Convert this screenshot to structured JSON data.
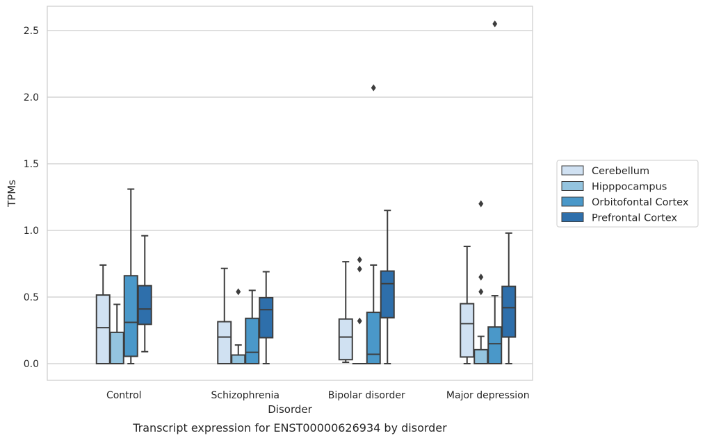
{
  "chart_data": {
    "type": "box",
    "title": "",
    "caption": "Transcript expression for ENST00000626934 by disorder",
    "xlabel": "Disorder",
    "ylabel": "TPMs",
    "ylim": [
      -0.125,
      2.68
    ],
    "yticks": [
      0.0,
      0.5,
      1.0,
      1.5,
      2.0,
      2.5
    ],
    "ytick_labels": [
      "0.0",
      "0.5",
      "1.0",
      "1.5",
      "2.0",
      "2.5"
    ],
    "grid": "horizontal",
    "legend_position": "right",
    "categories": [
      "Control",
      "Schizophrenia",
      "Bipolar disorder",
      "Major depression"
    ],
    "series": [
      {
        "name": "Cerebellum",
        "color": "#d0e1f2",
        "boxes": [
          {
            "whisker_low": 0.0,
            "q1": 0.0,
            "median": 0.27,
            "q3": 0.515,
            "whisker_high": 0.74,
            "outliers": []
          },
          {
            "whisker_low": 0.0,
            "q1": 0.0,
            "median": 0.2,
            "q3": 0.315,
            "whisker_high": 0.715,
            "outliers": []
          },
          {
            "whisker_low": 0.01,
            "q1": 0.03,
            "median": 0.2,
            "q3": 0.335,
            "whisker_high": 0.765,
            "outliers": []
          },
          {
            "whisker_low": 0.0,
            "q1": 0.05,
            "median": 0.3,
            "q3": 0.45,
            "whisker_high": 0.88,
            "outliers": []
          }
        ]
      },
      {
        "name": "Hipppocampus",
        "color": "#94c4df",
        "boxes": [
          {
            "whisker_low": 0.0,
            "q1": 0.0,
            "median": 0.0,
            "q3": 0.235,
            "whisker_high": 0.445,
            "outliers": []
          },
          {
            "whisker_low": 0.0,
            "q1": 0.0,
            "median": 0.0,
            "q3": 0.065,
            "whisker_high": 0.14,
            "outliers": [
              0.54
            ]
          },
          {
            "whisker_low": 0.0,
            "q1": 0.0,
            "median": 0.0,
            "q3": 0.0,
            "whisker_high": 0.0,
            "outliers": [
              0.32,
              0.71,
              0.78
            ]
          },
          {
            "whisker_low": 0.0,
            "q1": 0.0,
            "median": 0.0,
            "q3": 0.105,
            "whisker_high": 0.205,
            "outliers": [
              0.54,
              0.65,
              1.2
            ]
          }
        ]
      },
      {
        "name": "Orbitofontal Cortex",
        "color": "#4a98c9",
        "boxes": [
          {
            "whisker_low": 0.0,
            "q1": 0.055,
            "median": 0.31,
            "q3": 0.66,
            "whisker_high": 1.31,
            "outliers": []
          },
          {
            "whisker_low": 0.0,
            "q1": 0.0,
            "median": 0.085,
            "q3": 0.34,
            "whisker_high": 0.55,
            "outliers": []
          },
          {
            "whisker_low": 0.0,
            "q1": 0.0,
            "median": 0.07,
            "q3": 0.385,
            "whisker_high": 0.74,
            "outliers": [
              2.07
            ]
          },
          {
            "whisker_low": 0.0,
            "q1": 0.0,
            "median": 0.15,
            "q3": 0.275,
            "whisker_high": 0.51,
            "outliers": [
              2.55
            ]
          }
        ]
      },
      {
        "name": "Prefrontal Cortex",
        "color": "#2e6fab",
        "boxes": [
          {
            "whisker_low": 0.09,
            "q1": 0.295,
            "median": 0.41,
            "q3": 0.585,
            "whisker_high": 0.96,
            "outliers": []
          },
          {
            "whisker_low": 0.0,
            "q1": 0.195,
            "median": 0.405,
            "q3": 0.495,
            "whisker_high": 0.69,
            "outliers": []
          },
          {
            "whisker_low": 0.0,
            "q1": 0.345,
            "median": 0.6,
            "q3": 0.695,
            "whisker_high": 1.15,
            "outliers": []
          },
          {
            "whisker_low": 0.0,
            "q1": 0.2,
            "median": 0.42,
            "q3": 0.58,
            "whisker_high": 0.98,
            "outliers": []
          }
        ]
      }
    ]
  }
}
